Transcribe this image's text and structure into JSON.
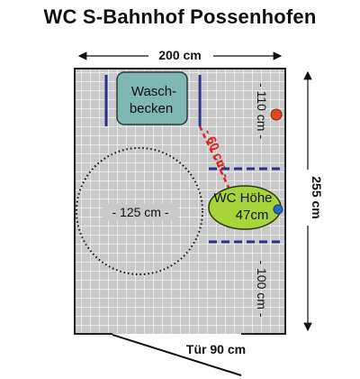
{
  "title": "WC S-Bahnhof Possenhofen",
  "dimensions": {
    "width": "200 cm",
    "height": "255 cm",
    "right_upper": "- 110 cm -",
    "right_lower": "- 100 cm -",
    "reach": "- 60 cm -",
    "turning_circle": "- 125 cm -",
    "door": "Tür 90 cm"
  },
  "fixtures": {
    "sink_line1": "Wasch-",
    "sink_line2": "becken",
    "toilet_line1": "WC Höhe",
    "toilet_line2": "47cm"
  },
  "colors": {
    "floor": "#c9c9c9",
    "grid": "#ffffff",
    "sink": "#7fb7b2",
    "toilet": "#a6d43a",
    "grab_bar": "#2a2f8a",
    "red_marker": "#e04a1a",
    "blue_marker": "#2b6cc4",
    "reach_line": "#e02020"
  }
}
